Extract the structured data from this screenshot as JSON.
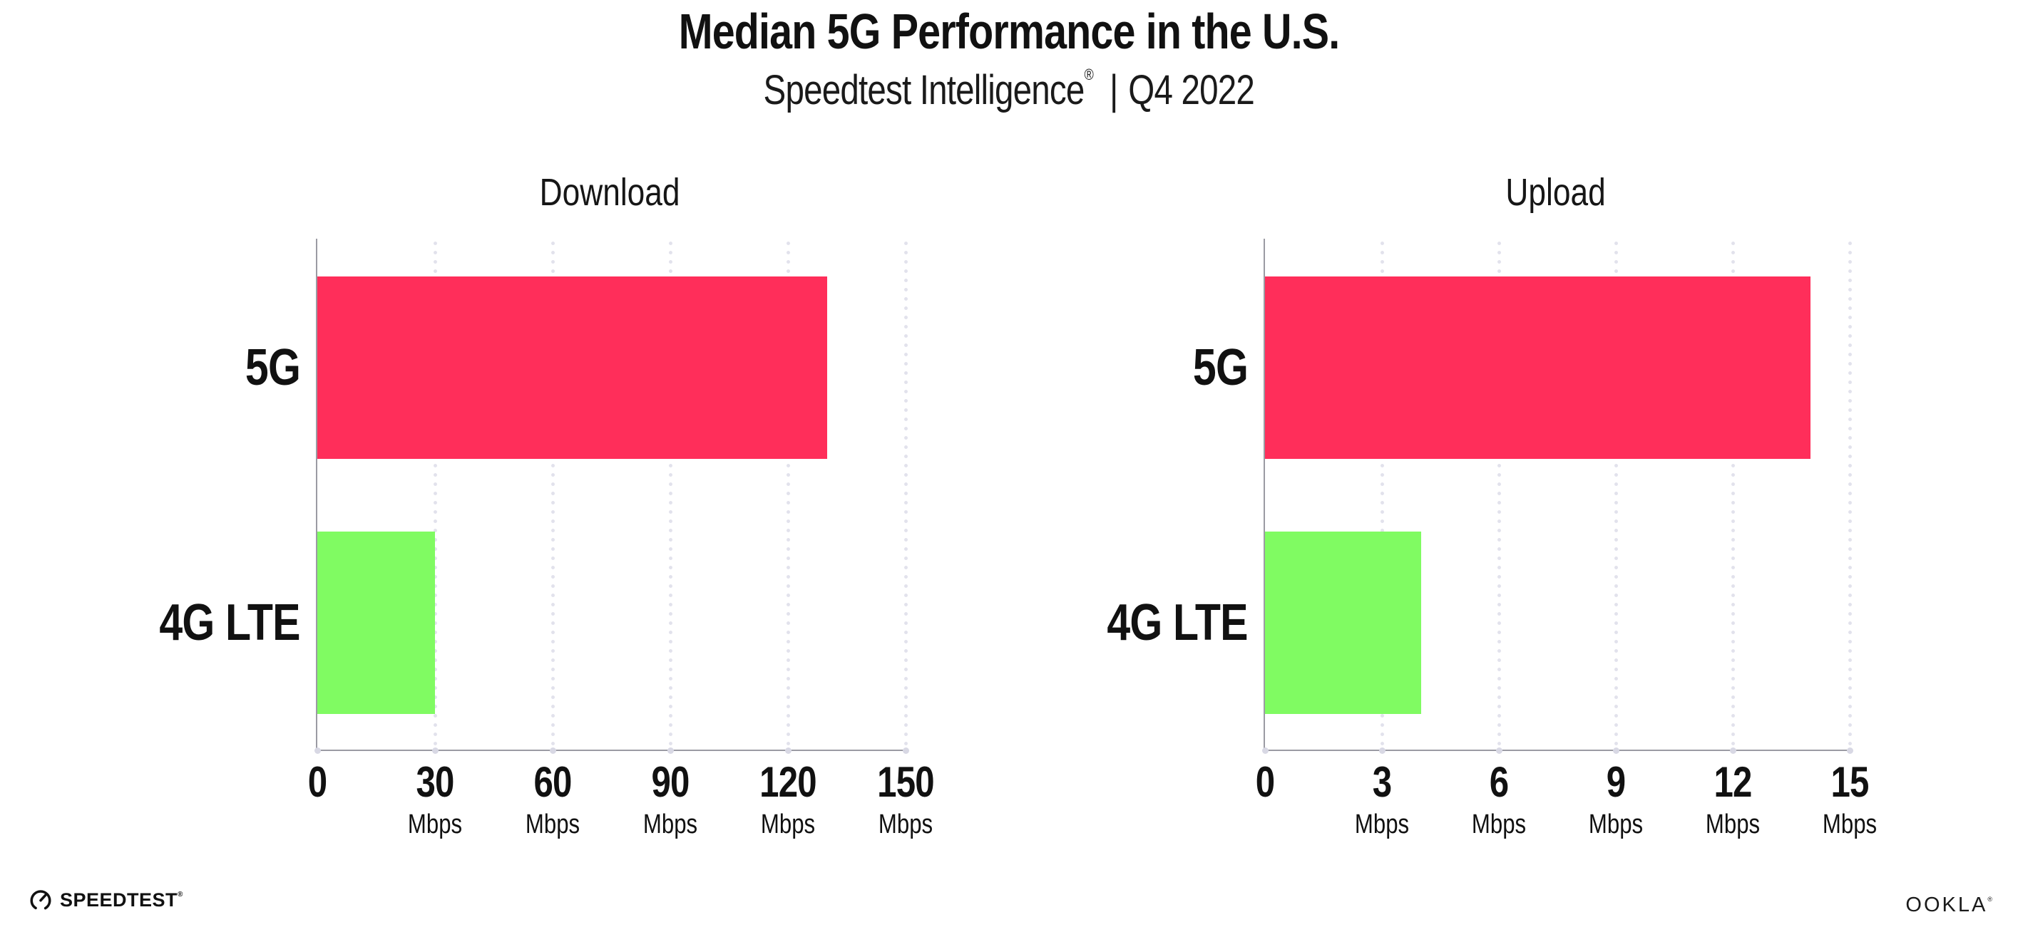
{
  "header": {
    "title": "Median 5G Performance in the U.S.",
    "subtitle": {
      "brand": "Speedtest Intelligence",
      "registered": "®",
      "separator": "|",
      "period": "Q4 2022"
    }
  },
  "colors": {
    "bar_5g": "#FF2E5A",
    "bar_4g": "#80FB62",
    "axis": "#9B9BA3",
    "gridline_dot": "#E2E2EC",
    "axis_tick_dot": "#D8D8E4",
    "text": "#111111",
    "background": "#FFFFFF"
  },
  "chart_data": [
    {
      "type": "bar",
      "orientation": "horizontal",
      "title": "Download",
      "categories": [
        "5G",
        "4G LTE"
      ],
      "values": [
        130,
        30
      ],
      "unit": "Mbps",
      "xlim": [
        0,
        150
      ],
      "xticks": [
        0,
        30,
        60,
        90,
        120,
        150
      ],
      "grid": "dotted-vertical",
      "legend": "none",
      "series_colors": [
        "#FF2E5A",
        "#80FB62"
      ]
    },
    {
      "type": "bar",
      "orientation": "horizontal",
      "title": "Upload",
      "categories": [
        "5G",
        "4G LTE"
      ],
      "values": [
        14,
        4
      ],
      "unit": "Mbps",
      "xlim": [
        0,
        15
      ],
      "xticks": [
        0,
        3,
        6,
        9,
        12,
        15
      ],
      "grid": "dotted-vertical",
      "legend": "none",
      "series_colors": [
        "#FF2E5A",
        "#80FB62"
      ]
    }
  ],
  "footer": {
    "speedtest_label": "SPEEDTEST",
    "speedtest_registered": "®",
    "ookla_label": "OOKLA",
    "ookla_registered": "®"
  }
}
